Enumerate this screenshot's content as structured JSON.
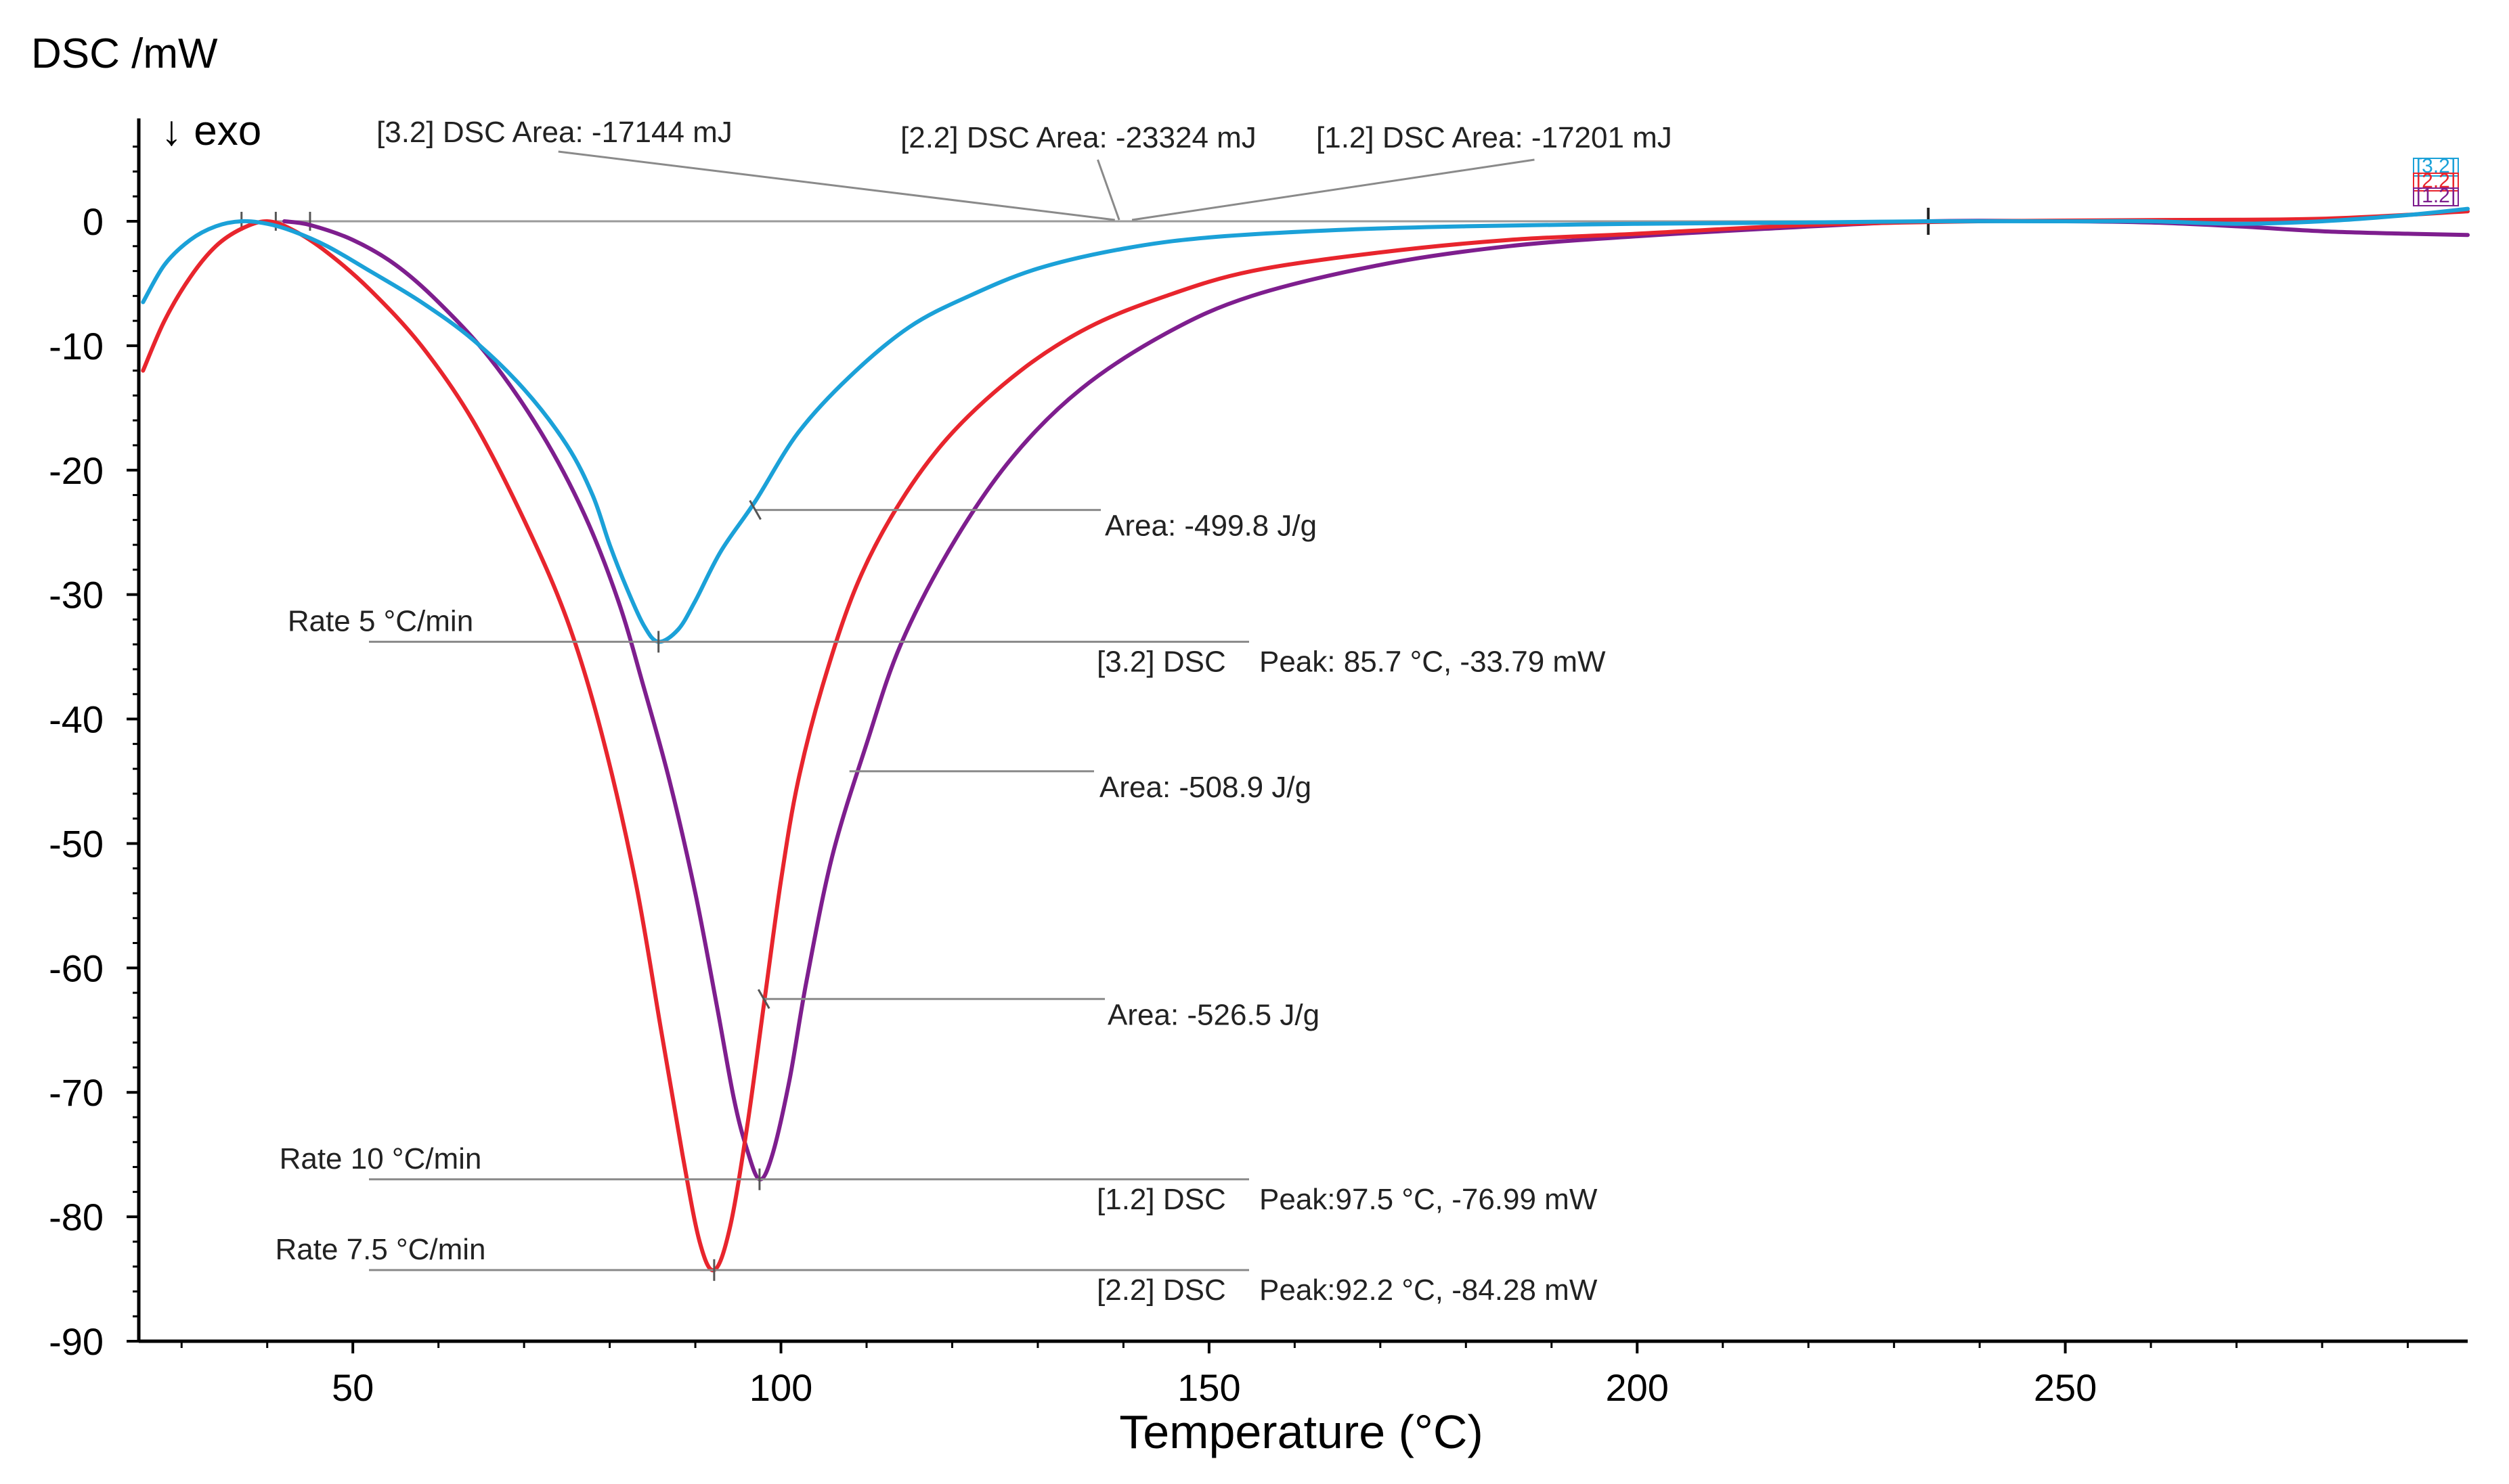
{
  "chart_data": {
    "type": "line",
    "title": "",
    "ylabel": "DSC /mW",
    "direction_label": "↓ exo",
    "xlabel": "Temperature (°C)",
    "xlim": [
      25,
      297
    ],
    "ylim": [
      -90,
      7
    ],
    "x_ticks": [
      50,
      100,
      150,
      200,
      250
    ],
    "y_ticks": [
      0,
      -10,
      -20,
      -30,
      -40,
      -50,
      -60,
      -70,
      -80,
      -90
    ],
    "grid": false,
    "series": [
      {
        "name": "[3.2]",
        "rate_label": "Rate 5  °C/min",
        "color": "#1ba1d8",
        "points": [
          [
            25.5,
            -6.5
          ],
          [
            28,
            -3.5
          ],
          [
            31,
            -1.5
          ],
          [
            34,
            -0.4
          ],
          [
            37,
            0
          ],
          [
            40,
            -0.2
          ],
          [
            43,
            -0.8
          ],
          [
            47,
            -2
          ],
          [
            52,
            -4
          ],
          [
            58,
            -6.5
          ],
          [
            64,
            -9.5
          ],
          [
            70,
            -13.5
          ],
          [
            75,
            -18
          ],
          [
            78,
            -22
          ],
          [
            80,
            -26
          ],
          [
            82,
            -29.5
          ],
          [
            84,
            -32.5
          ],
          [
            85.7,
            -33.79
          ],
          [
            88,
            -32.8
          ],
          [
            90,
            -30.5
          ],
          [
            93,
            -26.5
          ],
          [
            97,
            -22.5
          ],
          [
            102,
            -17
          ],
          [
            108,
            -12.5
          ],
          [
            115,
            -8.5
          ],
          [
            122,
            -6
          ],
          [
            130,
            -3.8
          ],
          [
            140,
            -2.2
          ],
          [
            150,
            -1.3
          ],
          [
            165,
            -0.7
          ],
          [
            180,
            -0.4
          ],
          [
            200,
            -0.2
          ],
          [
            220,
            -0.1
          ],
          [
            234,
            0
          ],
          [
            250,
            0
          ],
          [
            260,
            0
          ],
          [
            270,
            -0.2
          ],
          [
            280,
            0
          ],
          [
            290,
            0.5
          ],
          [
            297,
            1
          ]
        ]
      },
      {
        "name": "[2.2]",
        "rate_label": "Rate 7.5  °C/min",
        "color": "#e8252d",
        "points": [
          [
            25.5,
            -12
          ],
          [
            28,
            -8
          ],
          [
            31,
            -4.5
          ],
          [
            34,
            -2
          ],
          [
            37,
            -0.6
          ],
          [
            40,
            0
          ],
          [
            43,
            -0.7
          ],
          [
            47,
            -2.5
          ],
          [
            52,
            -5.5
          ],
          [
            58,
            -10
          ],
          [
            64,
            -16
          ],
          [
            70,
            -24
          ],
          [
            75,
            -32
          ],
          [
            79,
            -41
          ],
          [
            83,
            -53
          ],
          [
            86,
            -65
          ],
          [
            88.5,
            -75
          ],
          [
            90.5,
            -82
          ],
          [
            92.2,
            -84.28
          ],
          [
            94,
            -81
          ],
          [
            96,
            -73
          ],
          [
            98,
            -63
          ],
          [
            100,
            -53
          ],
          [
            102,
            -45
          ],
          [
            105,
            -37
          ],
          [
            109,
            -29
          ],
          [
            114,
            -22.5
          ],
          [
            120,
            -17
          ],
          [
            128,
            -12
          ],
          [
            136,
            -8.5
          ],
          [
            145,
            -6
          ],
          [
            155,
            -4
          ],
          [
            170,
            -2.5
          ],
          [
            185,
            -1.5
          ],
          [
            200,
            -1
          ],
          [
            220,
            -0.3
          ],
          [
            240,
            0
          ],
          [
            260,
            0.1
          ],
          [
            280,
            0.2
          ],
          [
            297,
            0.8
          ]
        ]
      },
      {
        "name": "[1.2]",
        "rate_label": "Rate 10  °C/min",
        "color": "#7e1e8e",
        "points": [
          [
            42,
            0
          ],
          [
            45,
            -0.3
          ],
          [
            50,
            -1.5
          ],
          [
            55,
            -3.5
          ],
          [
            60,
            -6.5
          ],
          [
            66,
            -11
          ],
          [
            72,
            -17
          ],
          [
            77,
            -23.5
          ],
          [
            81,
            -30.5
          ],
          [
            84,
            -37.5
          ],
          [
            87,
            -45
          ],
          [
            90,
            -54
          ],
          [
            92.5,
            -63
          ],
          [
            94.5,
            -70.5
          ],
          [
            96,
            -74.5
          ],
          [
            97.5,
            -76.99
          ],
          [
            99,
            -75
          ],
          [
            101,
            -69
          ],
          [
            103,
            -61
          ],
          [
            106,
            -51
          ],
          [
            110,
            -42
          ],
          [
            114,
            -34
          ],
          [
            120,
            -26
          ],
          [
            127,
            -19
          ],
          [
            135,
            -13.5
          ],
          [
            145,
            -9
          ],
          [
            155,
            -6
          ],
          [
            170,
            -3.5
          ],
          [
            185,
            -2
          ],
          [
            200,
            -1.2
          ],
          [
            215,
            -0.6
          ],
          [
            234,
            0
          ],
          [
            250,
            0
          ],
          [
            260,
            -0.1
          ],
          [
            270,
            -0.4
          ],
          [
            280,
            -0.8
          ],
          [
            290,
            -1
          ],
          [
            297,
            -1.1
          ]
        ]
      }
    ],
    "annotations": {
      "area_mj_32": "[3.2] DSC Area: -17144 mJ",
      "area_mj_22": "[2.2] DSC Area: -23324 mJ",
      "area_mj_12": "[1.2] DSC Area: -17201 mJ",
      "area_jg_32": "Area: -499.8 J/g",
      "area_jg_12": "Area: -508.9 J/g",
      "area_jg_22": "Area: -526.5 J/g",
      "peak_32_prefix": "[3.2] DSC",
      "peak_32": "Peak: 85.7 °C, -33.79 mW",
      "peak_12_prefix": "[1.2] DSC",
      "peak_12": "Peak:97.5 °C, -76.99 mW",
      "peak_22_prefix": "[2.2] DSC",
      "peak_22": "Peak:92.2 °C, -84.28 mW",
      "rate_32": "Rate 5  °C/min",
      "rate_12": "Rate 10  °C/min",
      "rate_22": "Rate 7.5  °C/min",
      "tag_32": "[3.2]",
      "tag_22": "[2.2]",
      "tag_12": "[1.2]"
    }
  }
}
